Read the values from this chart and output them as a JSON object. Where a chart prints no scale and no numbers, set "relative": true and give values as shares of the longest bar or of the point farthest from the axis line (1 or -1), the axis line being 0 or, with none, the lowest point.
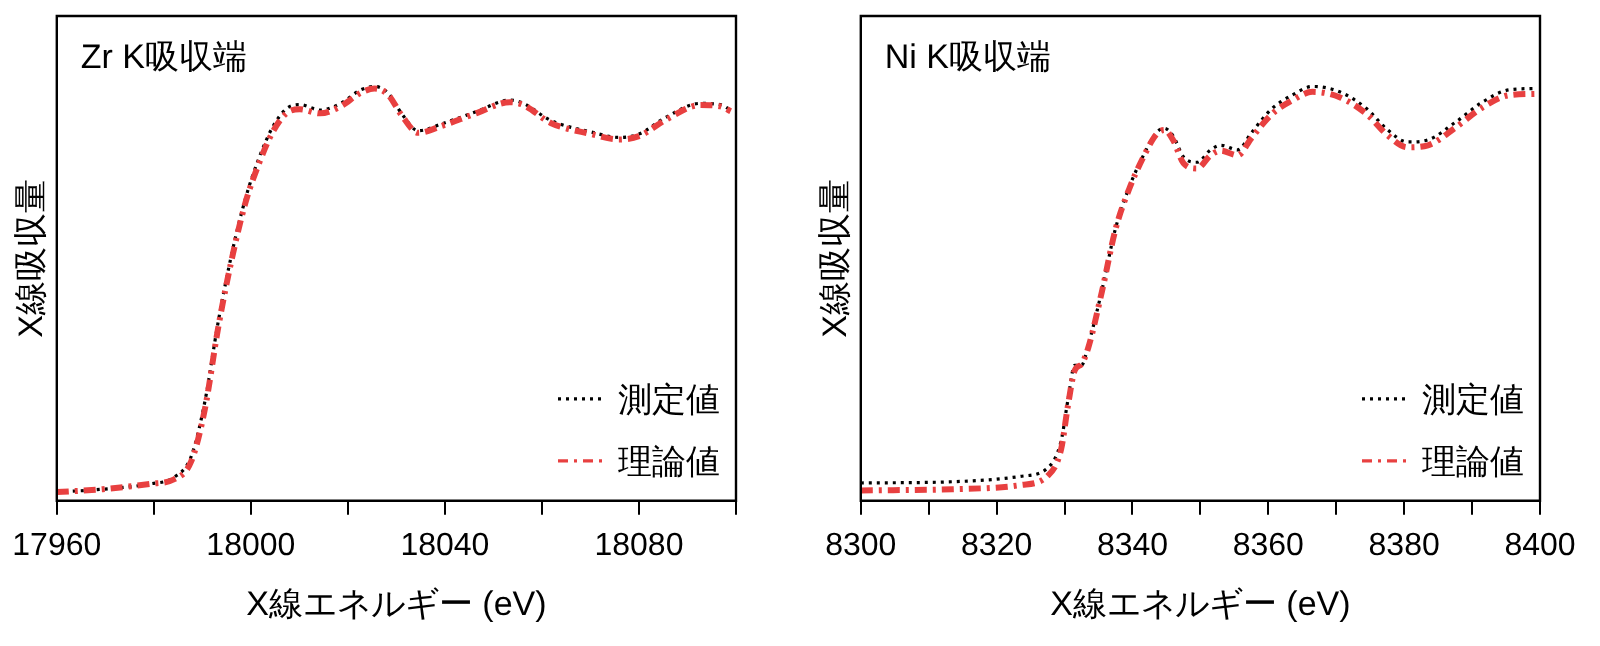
{
  "chart_data": [
    {
      "type": "line",
      "title": "Zr K吸収端",
      "xlabel": "X線エネルギー (eV)",
      "ylabel": "X線吸収量",
      "relative": true,
      "legend": "bottom right",
      "grid": false,
      "marker": "none",
      "xlim": [
        17960,
        18100
      ],
      "xticks": [
        17960,
        {
          "value": 17980,
          "label": null
        },
        18000,
        {
          "value": 18020,
          "label": null
        },
        18040,
        {
          "value": 18060,
          "label": null
        },
        18080,
        {
          "value": 18100,
          "label": null
        }
      ],
      "series": [
        {
          "name": "理論値",
          "color": "#e84040",
          "line_style": "dashed",
          "x": [
            17960,
            17969.5,
            17979.3,
            17984.2,
            17987.7,
            17990.5,
            17993.3,
            17996.1,
            17998.9,
            18001.7,
            18004.5,
            18007.3,
            18010.1,
            18014.3,
            18018.5,
            18022.7,
            18025.5,
            18028.3,
            18031.1,
            18034.5,
            18039.4,
            18046.4,
            18053.4,
            18056.2,
            18061.8,
            18070.2,
            18075.8,
            18080,
            18085.6,
            18092.6,
            18096.8,
            18098.9
          ],
          "values": [
            0.021,
            0.028,
            0.041,
            0.052,
            0.095,
            0.22,
            0.42,
            0.585,
            0.72,
            0.815,
            0.89,
            0.935,
            0.945,
            0.935,
            0.952,
            0.985,
            0.995,
            0.98,
            0.93,
            0.888,
            0.905,
            0.935,
            0.962,
            0.955,
            0.912,
            0.885,
            0.872,
            0.88,
            0.92,
            0.955,
            0.952,
            0.94
          ]
        },
        {
          "name": "測定値",
          "color": "#000000",
          "line_style": "dotted",
          "x": [
            17960,
            17969.5,
            17979.3,
            17984.2,
            17987.7,
            17990.5,
            17993.3,
            17996.1,
            17998.9,
            18001.7,
            18004.5,
            18007.3,
            18010.1,
            18014.3,
            18018.5,
            18022.7,
            18025.5,
            18028.3,
            18031.1,
            18034.5,
            18039.4,
            18046.4,
            18053.4,
            18056.2,
            18061.8,
            18070.2,
            18075.8,
            18080,
            18085.6,
            18092.6,
            18096.8,
            18098.9
          ],
          "values": [
            0.021,
            0.028,
            0.041,
            0.057,
            0.107,
            0.238,
            0.434,
            0.598,
            0.73,
            0.828,
            0.902,
            0.946,
            0.956,
            0.943,
            0.959,
            0.992,
            1,
            0.984,
            0.934,
            0.893,
            0.91,
            0.939,
            0.967,
            0.959,
            0.918,
            0.89,
            0.877,
            0.885,
            0.926,
            0.959,
            0.956,
            0.943
          ]
        }
      ]
    },
    {
      "type": "line",
      "title": "Ni K吸収端",
      "xlabel": "X線エネルギー (eV)",
      "ylabel": "X線吸収量",
      "relative": true,
      "legend": "bottom right",
      "grid": false,
      "marker": "none",
      "xlim": [
        8300,
        8400
      ],
      "xticks": [
        8300,
        {
          "value": 8310,
          "label": null
        },
        8320,
        {
          "value": 8330,
          "label": null
        },
        8340,
        {
          "value": 8350,
          "label": null
        },
        8360,
        {
          "value": 8370,
          "label": null
        },
        8380,
        {
          "value": 8390,
          "label": null
        },
        8400
      ],
      "series": [
        {
          "name": "理論値",
          "color": "#e84040",
          "line_style": "dashed",
          "x": [
            8300,
            8313.5,
            8323.5,
            8327.5,
            8329.5,
            8330.5,
            8331.5,
            8332.5,
            8333.5,
            8335.5,
            8337.5,
            8339.5,
            8341.5,
            8343.5,
            8344.7,
            8346,
            8347.5,
            8349.5,
            8351.5,
            8353,
            8355.5,
            8357.5,
            8360.5,
            8363.5,
            8366.5,
            8370.5,
            8374.5,
            8377.5,
            8380.5,
            8383.5,
            8387.5,
            8391.5,
            8395.5,
            8399.5
          ],
          "values": [
            0.025,
            0.028,
            0.038,
            0.06,
            0.125,
            0.23,
            0.315,
            0.33,
            0.37,
            0.505,
            0.655,
            0.752,
            0.826,
            0.884,
            0.895,
            0.87,
            0.815,
            0.802,
            0.834,
            0.845,
            0.834,
            0.875,
            0.933,
            0.966,
            0.987,
            0.974,
            0.933,
            0.883,
            0.853,
            0.858,
            0.9,
            0.949,
            0.979,
            0.982
          ]
        },
        {
          "name": "測定値",
          "color": "#000000",
          "line_style": "dotted",
          "x": [
            8300,
            8313.5,
            8323.5,
            8327.5,
            8329.5,
            8330.5,
            8331.5,
            8332.5,
            8333.5,
            8335.5,
            8337.5,
            8339.5,
            8341.5,
            8343.5,
            8344.7,
            8346,
            8347.5,
            8349.5,
            8351.5,
            8353,
            8355.5,
            8357.5,
            8360.5,
            8363.5,
            8366.5,
            8370.5,
            8374.5,
            8377.5,
            8380.5,
            8383.5,
            8387.5,
            8391.5,
            8395.5,
            8399.5
          ],
          "values": [
            0.043,
            0.046,
            0.059,
            0.079,
            0.145,
            0.244,
            0.327,
            0.327,
            0.376,
            0.508,
            0.657,
            0.756,
            0.83,
            0.888,
            0.899,
            0.88,
            0.83,
            0.817,
            0.847,
            0.858,
            0.847,
            0.888,
            0.946,
            0.979,
            1,
            0.987,
            0.946,
            0.896,
            0.866,
            0.871,
            0.913,
            0.962,
            0.992,
            0.995
          ]
        }
      ]
    }
  ]
}
